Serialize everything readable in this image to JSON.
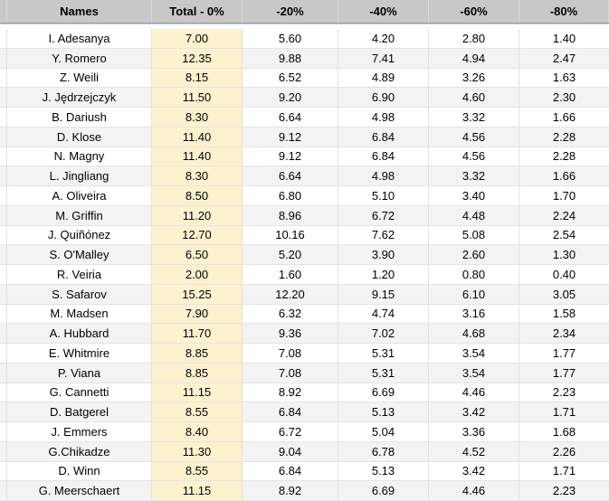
{
  "app": "spreadsheet-table",
  "colors": {
    "header_bg": "#c8c8c8",
    "header_text": "#000000",
    "row_even_bg": "#ffffff",
    "row_odd_bg": "#f3f3f3",
    "total_column_bg": "#fdf2cf",
    "grid_border": "#e2e2e2",
    "frozen_divider": "#c2cbd4"
  },
  "table": {
    "columns": [
      {
        "label": ""
      },
      {
        "label": "Names"
      },
      {
        "label": "Total - 0%"
      },
      {
        "label": "-20%"
      },
      {
        "label": "-40%"
      },
      {
        "label": "-60%"
      },
      {
        "label": "-80%"
      }
    ],
    "rows": [
      [
        "I. Adesanya",
        "7.00",
        "5.60",
        "4.20",
        "2.80",
        "1.40"
      ],
      [
        "Y. Romero",
        "12.35",
        "9.88",
        "7.41",
        "4.94",
        "2.47"
      ],
      [
        "Z. Weili",
        "8.15",
        "6.52",
        "4.89",
        "3.26",
        "1.63"
      ],
      [
        "J. Jędrzejczyk",
        "11.50",
        "9.20",
        "6.90",
        "4.60",
        "2.30"
      ],
      [
        "B. Dariush",
        "8.30",
        "6.64",
        "4.98",
        "3.32",
        "1.66"
      ],
      [
        "D. Klose",
        "11.40",
        "9.12",
        "6.84",
        "4.56",
        "2.28"
      ],
      [
        "N. Magny",
        "11.40",
        "9.12",
        "6.84",
        "4.56",
        "2.28"
      ],
      [
        "L. Jingliang",
        "8.30",
        "6.64",
        "4.98",
        "3.32",
        "1.66"
      ],
      [
        "A. Oliveira",
        "8.50",
        "6.80",
        "5.10",
        "3.40",
        "1.70"
      ],
      [
        "M. Griffin",
        "11.20",
        "8.96",
        "6.72",
        "4.48",
        "2.24"
      ],
      [
        "J. Quiñónez",
        "12.70",
        "10.16",
        "7.62",
        "5.08",
        "2.54"
      ],
      [
        "S. O'Malley",
        "6.50",
        "5.20",
        "3.90",
        "2.60",
        "1.30"
      ],
      [
        "R. Veiria",
        "2.00",
        "1.60",
        "1.20",
        "0.80",
        "0.40"
      ],
      [
        "S. Safarov",
        "15.25",
        "12.20",
        "9.15",
        "6.10",
        "3.05"
      ],
      [
        "M. Madsen",
        "7.90",
        "6.32",
        "4.74",
        "3.16",
        "1.58"
      ],
      [
        "A. Hubbard",
        "11.70",
        "9.36",
        "7.02",
        "4.68",
        "2.34"
      ],
      [
        "E. Whitmire",
        "8.85",
        "7.08",
        "5.31",
        "3.54",
        "1.77"
      ],
      [
        "P. Viana",
        "8.85",
        "7.08",
        "5.31",
        "3.54",
        "1.77"
      ],
      [
        "G. Cannetti",
        "11.15",
        "8.92",
        "6.69",
        "4.46",
        "2.23"
      ],
      [
        "D. Batgerel",
        "8.55",
        "6.84",
        "5.13",
        "3.42",
        "1.71"
      ],
      [
        "J. Emmers",
        "8.40",
        "6.72",
        "5.04",
        "3.36",
        "1.68"
      ],
      [
        "G.Chikadze",
        "11.30",
        "9.04",
        "6.78",
        "4.52",
        "2.26"
      ],
      [
        "D. Winn",
        "8.55",
        "6.84",
        "5.13",
        "3.42",
        "1.71"
      ],
      [
        "G. Meerschaert",
        "11.15",
        "8.92",
        "6.69",
        "4.46",
        "2.23"
      ]
    ]
  }
}
